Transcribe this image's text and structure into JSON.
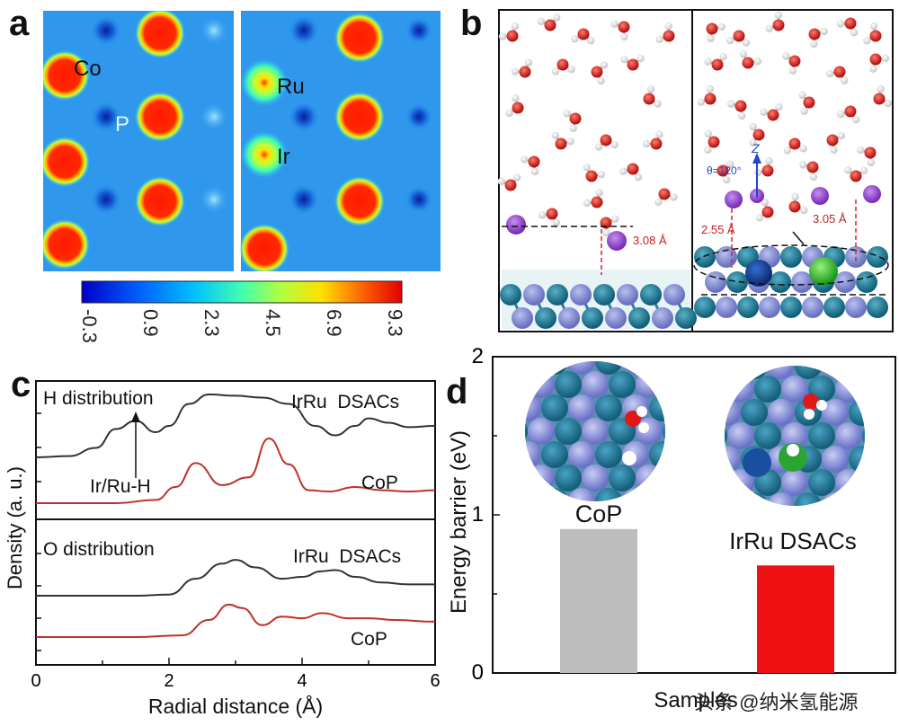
{
  "panel_a": {
    "letter": "a",
    "atom_labels": {
      "co": "Co",
      "p": "P",
      "ru": "Ru",
      "ir": "Ir"
    },
    "colorbar_ticks": [
      "-0.3",
      "0.9",
      "2.3",
      "4.5",
      "6.9",
      "9.3"
    ]
  },
  "panel_b": {
    "letter": "b",
    "dist_left": "3.08 Å",
    "dist_right_1": "2.55 Å",
    "dist_right_2": "3.05 Å",
    "angle": "θ=120°",
    "axis_z": "Z"
  },
  "panel_c": {
    "letter": "c",
    "top_title": "H distribution",
    "top_label_dsacs": "IrRu  DSACs",
    "top_label_cop": "CoP",
    "annotation": "Ir/Ru-H",
    "bottom_title": "O distribution",
    "bottom_label_dsacs": "IrRu  DSACs",
    "bottom_label_cop": "CoP",
    "ylabel": "Density (a. u.)",
    "xlabel": "Radial distance (Å)",
    "x_ticks": [
      "0",
      "2",
      "4",
      "6"
    ]
  },
  "panel_d": {
    "letter": "d",
    "ylabel": "Energy barrier (eV)",
    "xlabel": "Samples",
    "y_ticks": [
      "0",
      "1",
      "2"
    ],
    "colors": {
      "cop": "#bdbdbd",
      "dsacs": "#ee1111"
    }
  },
  "chart_data": [
    {
      "type": "line",
      "panel": "c-top",
      "title": "H distribution",
      "xlabel": "Radial distance (Å)",
      "ylabel": "Density (a. u.)",
      "xlim": [
        0,
        6
      ],
      "series": [
        {
          "name": "IrRu  DSACs",
          "color": "#333333",
          "x": [
            0,
            0.5,
            0.9,
            1.2,
            1.5,
            1.8,
            2.0,
            2.3,
            2.6,
            3.0,
            3.4,
            3.8,
            4.2,
            4.5,
            4.8,
            5.0,
            5.3,
            5.6,
            6.0
          ],
          "y": [
            0.0,
            0.02,
            0.15,
            0.45,
            0.58,
            0.4,
            0.5,
            0.85,
            1.0,
            0.98,
            0.95,
            0.85,
            0.5,
            0.35,
            0.5,
            0.62,
            0.55,
            0.48,
            0.5
          ]
        },
        {
          "name": "CoP",
          "color": "#c0302b",
          "x": [
            0,
            1.2,
            1.8,
            2.1,
            2.4,
            2.8,
            3.2,
            3.5,
            3.8,
            4.1,
            4.4,
            4.8,
            5.2,
            5.6,
            6.0
          ],
          "y": [
            0.0,
            0.0,
            0.05,
            0.25,
            0.62,
            0.28,
            0.4,
            1.0,
            0.6,
            0.2,
            0.18,
            0.25,
            0.2,
            0.18,
            0.2
          ]
        }
      ]
    },
    {
      "type": "line",
      "panel": "c-bottom",
      "title": "O distribution",
      "xlabel": "Radial distance (Å)",
      "ylabel": "Density (a. u.)",
      "xlim": [
        0,
        6
      ],
      "series": [
        {
          "name": "IrRu  DSACs",
          "color": "#333333",
          "x": [
            0,
            1.5,
            2.0,
            2.4,
            2.8,
            3.0,
            3.3,
            3.7,
            4.0,
            4.3,
            4.5,
            4.8,
            5.2,
            5.6,
            6.0
          ],
          "y": [
            0.0,
            0.0,
            0.03,
            0.45,
            0.85,
            0.95,
            0.75,
            0.45,
            0.5,
            0.65,
            0.68,
            0.5,
            0.35,
            0.3,
            0.3
          ]
        },
        {
          "name": "CoP",
          "color": "#c0302b",
          "x": [
            0,
            1.5,
            2.2,
            2.6,
            2.9,
            3.1,
            3.4,
            3.7,
            4.0,
            4.3,
            4.7,
            5.0,
            5.4,
            6.0
          ],
          "y": [
            0.0,
            0.0,
            0.05,
            0.5,
            0.95,
            0.85,
            0.35,
            0.6,
            0.55,
            0.7,
            0.55,
            0.55,
            0.5,
            0.45
          ]
        }
      ]
    },
    {
      "type": "bar",
      "panel": "d",
      "xlabel": "Samples",
      "ylabel": "Energy barrier (eV)",
      "ylim": [
        0,
        2
      ],
      "categories": [
        "CoP",
        "IrRu DSACs"
      ],
      "values": [
        0.91,
        0.68
      ]
    }
  ],
  "watermark": "头条 @纳米氢能源"
}
